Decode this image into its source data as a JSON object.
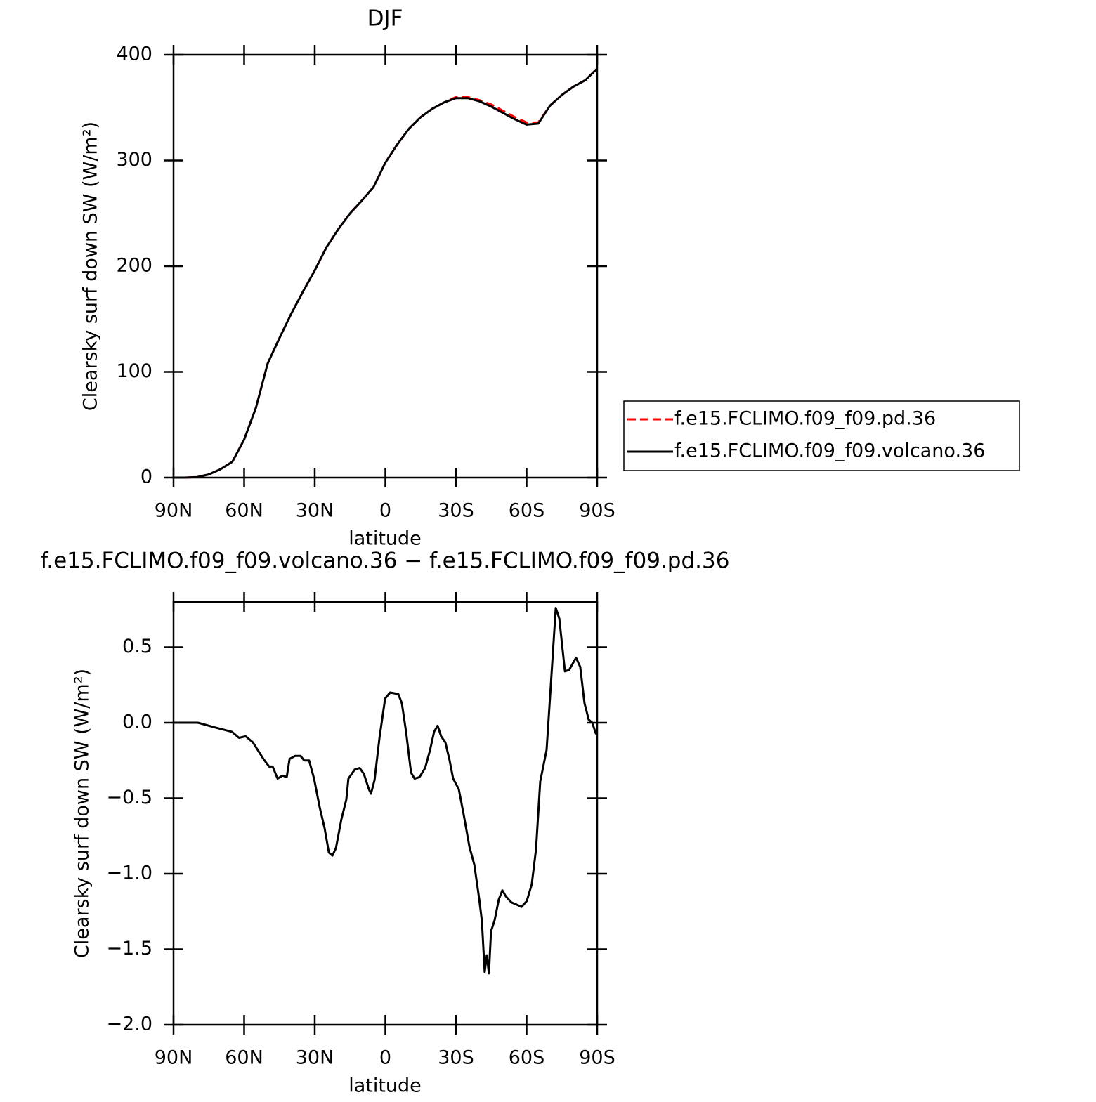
{
  "chart_data": [
    {
      "type": "line",
      "title": "DJF",
      "xlabel": "latitude",
      "ylabel": "Clearsky surf down SW (W/m²)",
      "x": [
        90,
        85,
        80,
        75,
        70,
        65,
        60,
        55,
        50,
        45,
        40,
        35,
        30,
        25,
        20,
        15,
        10,
        5,
        0,
        -5,
        -10,
        -15,
        -20,
        -25,
        -30,
        -35,
        -40,
        -45,
        -50,
        -55,
        -60,
        -65,
        -70,
        -75,
        -80,
        -85,
        -90
      ],
      "series": [
        {
          "name": "f.e15.FCLIMO.f09_f09.pd.36",
          "color": "#ff0000",
          "style": "dashed",
          "values": [
            0,
            0,
            0.5,
            3,
            8,
            15,
            36,
            66,
            108,
            132,
            155,
            176,
            196,
            218,
            235,
            250,
            262,
            275,
            298,
            315,
            330,
            341,
            349,
            355,
            360,
            360,
            357,
            353,
            347,
            341,
            336,
            336,
            352,
            362,
            370,
            376,
            387
          ]
        },
        {
          "name": "f.e15.FCLIMO.f09_f09.volcano.36",
          "color": "#000000",
          "style": "solid",
          "values": [
            0,
            0,
            0.5,
            3,
            8,
            15,
            36,
            66,
            108,
            132,
            155,
            176,
            196,
            218,
            235,
            250,
            262,
            275,
            298,
            315,
            330,
            341,
            349,
            355,
            359,
            359,
            356,
            351,
            345,
            339,
            334,
            335,
            352,
            362,
            370,
            376,
            387
          ]
        }
      ],
      "xlim": [
        90,
        -90
      ],
      "xticks": [
        {
          "value": 90,
          "label": "90N"
        },
        {
          "value": 60,
          "label": "60N"
        },
        {
          "value": 30,
          "label": "30N"
        },
        0,
        {
          "value": -30,
          "label": "30S"
        },
        {
          "value": -60,
          "label": "60S"
        },
        {
          "value": -90,
          "label": "90S"
        }
      ],
      "ylim": [
        0,
        400
      ],
      "yticks": [
        0,
        100,
        200,
        300,
        400
      ],
      "grid": false,
      "legend": "right"
    },
    {
      "type": "line",
      "title": "f.e15.FCLIMO.f09_f09.volcano.36 − f.e15.FCLIMO.f09_f09.pd.36",
      "xlabel": "latitude",
      "ylabel": "Clearsky surf down SW (W/m²)",
      "x": [
        90,
        79.6,
        72.7,
        65.2,
        62.2,
        59.3,
        56.3,
        51.8,
        49.4,
        47.9,
        45.8,
        43.7,
        41.9,
        40.7,
        38.4,
        36.0,
        34.5,
        32.4,
        30.3,
        27.9,
        25.8,
        24.0,
        22.5,
        21.0,
        18.7,
        16.6,
        15.7,
        13.0,
        10.9,
        9.1,
        7.0,
        6.1,
        4.6,
        2.5,
        0.1,
        -2.0,
        -5.5,
        -7.0,
        -8.8,
        -10.9,
        -12.4,
        -14.5,
        -16.9,
        -19.0,
        -20.7,
        -22.2,
        -23.7,
        -25.5,
        -27.3,
        -28.8,
        -31.2,
        -33.3,
        -35.7,
        -37.8,
        -39.9,
        -41.0,
        -42.2,
        -43.1,
        -44.0,
        -44.9,
        -46.4,
        -48.2,
        -49.7,
        -51.2,
        -53.6,
        -56.6,
        -57.8,
        -60.1,
        -62.2,
        -64.0,
        -65.8,
        -68.5,
        -70.6,
        -72.4,
        -73.9,
        -76.3,
        -78.1,
        -81.0,
        -82.8,
        -84.6,
        -86.4,
        -87.9,
        -89.4,
        -90
      ],
      "values": [
        0.0,
        0.0,
        -0.03,
        -0.06,
        -0.1,
        -0.09,
        -0.13,
        -0.24,
        -0.29,
        -0.29,
        -0.37,
        -0.35,
        -0.36,
        -0.24,
        -0.22,
        -0.22,
        -0.25,
        -0.25,
        -0.37,
        -0.56,
        -0.7,
        -0.86,
        -0.88,
        -0.83,
        -0.64,
        -0.51,
        -0.37,
        -0.31,
        -0.3,
        -0.34,
        -0.44,
        -0.47,
        -0.38,
        -0.1,
        0.16,
        0.2,
        0.19,
        0.13,
        -0.06,
        -0.33,
        -0.37,
        -0.36,
        -0.3,
        -0.18,
        -0.06,
        -0.02,
        -0.09,
        -0.13,
        -0.25,
        -0.37,
        -0.44,
        -0.61,
        -0.82,
        -0.94,
        -1.17,
        -1.31,
        -1.65,
        -1.54,
        -1.66,
        -1.38,
        -1.31,
        -1.17,
        -1.11,
        -1.15,
        -1.19,
        -1.21,
        -1.22,
        -1.18,
        -1.07,
        -0.84,
        -0.39,
        -0.18,
        0.32,
        0.76,
        0.69,
        0.34,
        0.35,
        0.43,
        0.37,
        0.13,
        0.02,
        0.0,
        -0.07,
        -0.08
      ],
      "color": "#000000",
      "xlim": [
        90,
        -90
      ],
      "xticks": [
        {
          "value": 90,
          "label": "90N"
        },
        {
          "value": 60,
          "label": "60N"
        },
        {
          "value": 30,
          "label": "30N"
        },
        0,
        {
          "value": -30,
          "label": "30S"
        },
        {
          "value": -60,
          "label": "60S"
        },
        {
          "value": -90,
          "label": "90S"
        }
      ],
      "ylim": [
        -2.0,
        0.8
      ],
      "yticks": [
        {
          "value": -2.0,
          "label": "−2.0"
        },
        {
          "value": -1.5,
          "label": "−1.5"
        },
        {
          "value": -1.0,
          "label": "−1.0"
        },
        {
          "value": -0.5,
          "label": "−0.5"
        },
        {
          "value": 0.0,
          "label": "0.0"
        },
        0.5
      ],
      "grid": false
    }
  ]
}
